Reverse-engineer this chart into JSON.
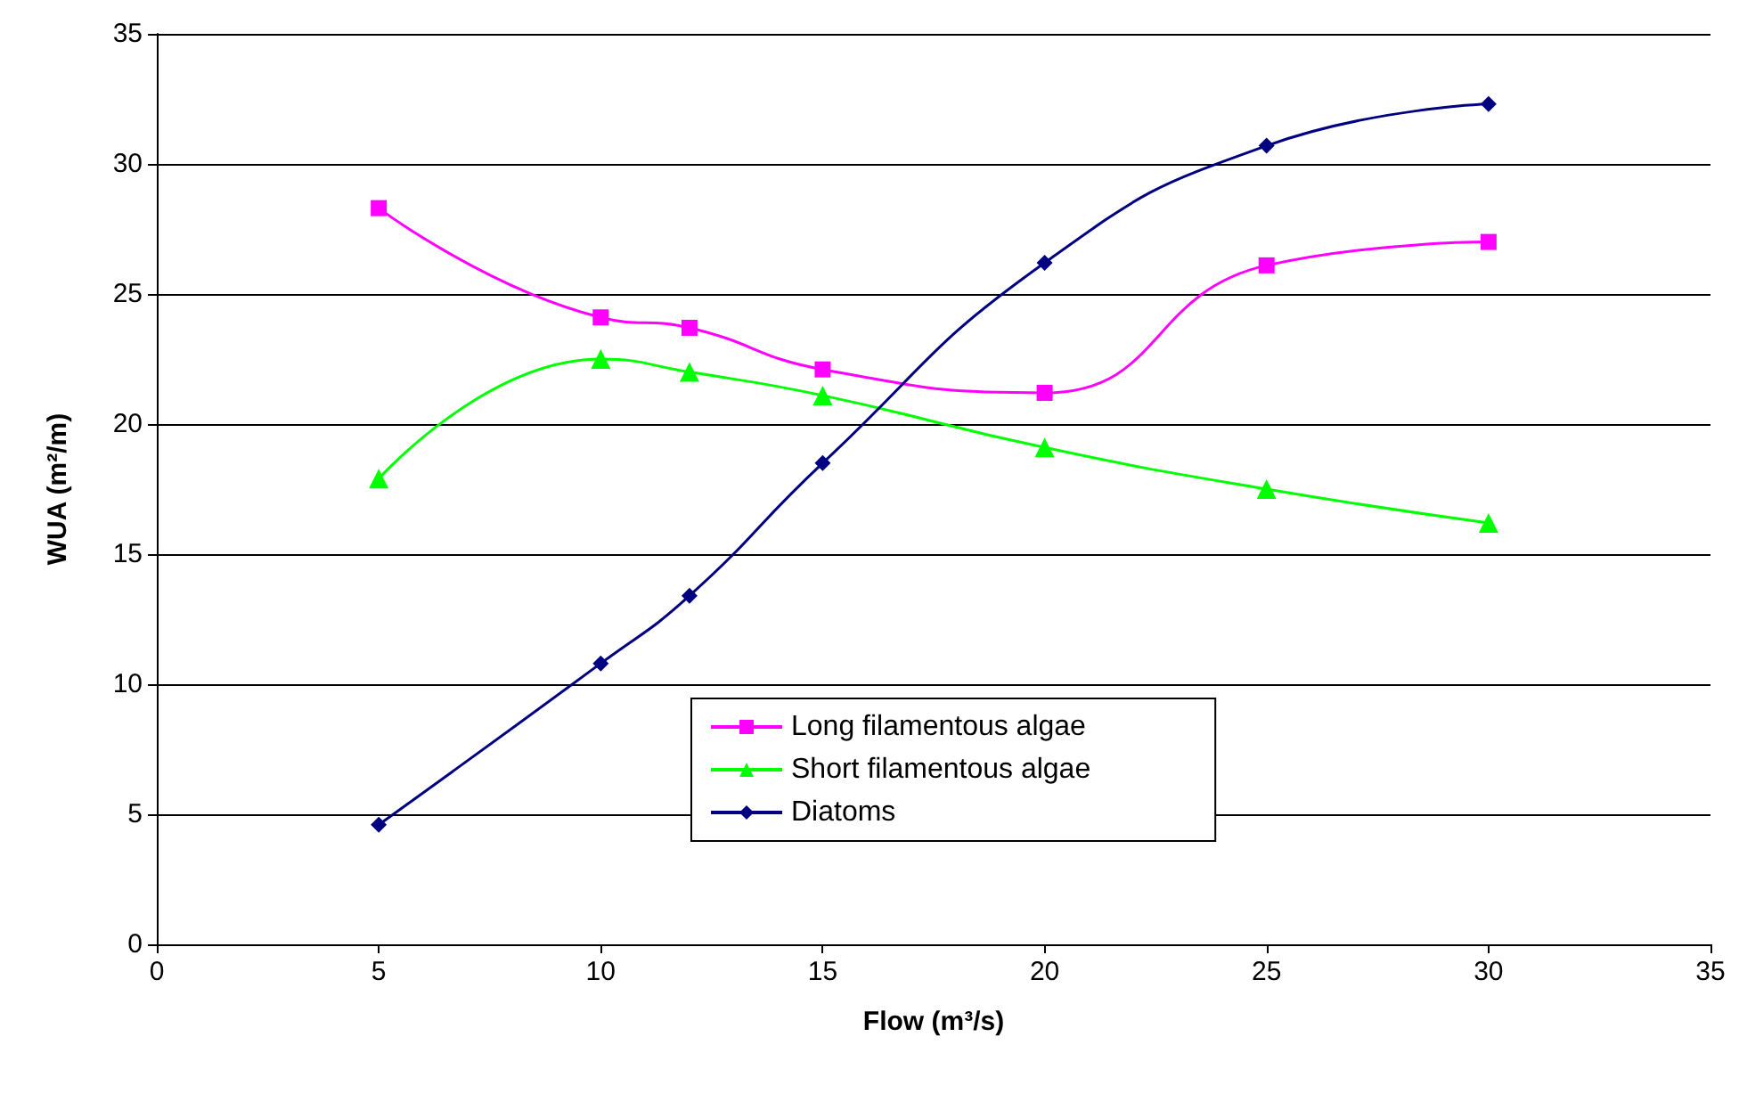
{
  "chart_data": {
    "type": "line",
    "xlabel": "Flow (m³/s)",
    "ylabel": "WUA (m²/m)",
    "x": [
      5,
      10,
      12,
      15,
      20,
      25,
      30
    ],
    "series": [
      {
        "name": "Long filamentous algae",
        "color": "#ff00ff",
        "marker": "square",
        "values": [
          28.3,
          24.1,
          23.7,
          22.1,
          21.2,
          26.1,
          27.0
        ]
      },
      {
        "name": "Short filamentous algae",
        "color": "#00ff00",
        "marker": "triangle",
        "values": [
          17.9,
          22.5,
          22.0,
          21.1,
          19.1,
          17.5,
          16.2
        ]
      },
      {
        "name": "Diatoms",
        "color": "#000080",
        "marker": "diamond",
        "values": [
          4.6,
          10.8,
          13.4,
          18.5,
          26.2,
          30.7,
          32.3
        ]
      }
    ],
    "xlim": [
      0,
      35
    ],
    "xticks": [
      0,
      5,
      10,
      15,
      20,
      25,
      30,
      35
    ],
    "ylim": [
      0,
      35
    ],
    "yticks": [
      0,
      5,
      10,
      15,
      20,
      25,
      30,
      35
    ],
    "grid": "y",
    "legend": "bottom",
    "line_style": "solid"
  }
}
